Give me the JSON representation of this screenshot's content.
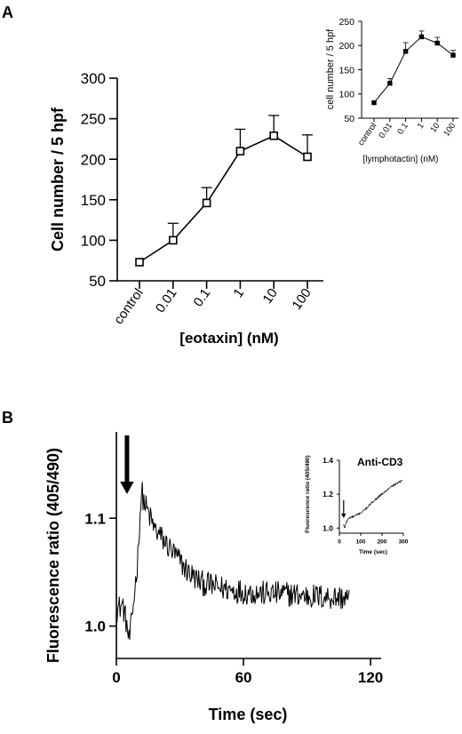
{
  "panels": {
    "a_letter": "A",
    "b_letter": "B"
  },
  "chart_data": [
    {
      "id": "eotaxin",
      "type": "line",
      "title": "",
      "xlabel": "[eotaxin] (nM)",
      "ylabel": "Cell number / 5 hpf",
      "categories": [
        "control",
        "0.01",
        "0.1",
        "1",
        "10",
        "100"
      ],
      "series": [
        {
          "values": [
            73,
            100,
            146,
            210,
            229,
            203
          ],
          "errors": [
            3,
            21,
            19,
            27,
            25,
            27
          ]
        }
      ],
      "ylim": [
        50,
        300
      ],
      "yticks": [
        "50",
        "100",
        "150",
        "200",
        "250",
        "300"
      ],
      "grid": false
    },
    {
      "id": "lymphotactin",
      "type": "line",
      "title": "",
      "xlabel": "[lymphotactin] (nM)",
      "ylabel": "cell number / 5 hpf",
      "categories": [
        "control",
        "0.01",
        "0.1",
        "1",
        "10",
        "100"
      ],
      "series": [
        {
          "values": [
            82,
            122,
            188,
            218,
            205,
            180
          ],
          "errors": [
            2,
            10,
            18,
            12,
            12,
            10
          ]
        }
      ],
      "ylim": [
        50,
        250
      ],
      "yticks": [
        "50",
        "100",
        "150",
        "200",
        "250"
      ],
      "grid": false
    },
    {
      "id": "fluorescence",
      "type": "line",
      "title": "",
      "xlabel": "Time (sec)",
      "ylabel": "Fluorescence ratio (405/490)",
      "x_range": [
        0,
        110
      ],
      "xlim": [
        0,
        125
      ],
      "xticks": [
        "0",
        "60",
        "120"
      ],
      "yticks": [
        "1.0",
        "1.1"
      ],
      "ylim": [
        0.97,
        1.18
      ],
      "anchors": [
        [
          0,
          1.015
        ],
        [
          3,
          1.02
        ],
        [
          4,
          1.01
        ],
        [
          5,
          1.0
        ],
        [
          6,
          0.985
        ],
        [
          7,
          1.0
        ],
        [
          8,
          1.02
        ],
        [
          9,
          1.04
        ],
        [
          10,
          1.06
        ],
        [
          11,
          1.1
        ],
        [
          12,
          1.125
        ],
        [
          13,
          1.115
        ],
        [
          15,
          1.105
        ],
        [
          18,
          1.09
        ],
        [
          22,
          1.08
        ],
        [
          26,
          1.07
        ],
        [
          30,
          1.06
        ],
        [
          34,
          1.05
        ],
        [
          40,
          1.04
        ],
        [
          50,
          1.035
        ],
        [
          60,
          1.032
        ],
        [
          70,
          1.03
        ],
        [
          80,
          1.03
        ],
        [
          90,
          1.028
        ],
        [
          100,
          1.027
        ],
        [
          110,
          1.026
        ]
      ],
      "noise": 0.012,
      "arrow_x": 5,
      "grid": false
    },
    {
      "id": "anti-cd3",
      "type": "line",
      "title": "Anti-CD3",
      "xlabel": "Time (sec)",
      "ylabel": "Fluorescence ratio (405/490)",
      "xticks": [
        "0",
        "100",
        "200",
        "300"
      ],
      "xlim": [
        0,
        300
      ],
      "yticks": [
        "1.0",
        "1.2",
        "1.4"
      ],
      "ylim": [
        0.97,
        1.4
      ],
      "anchors": [
        [
          18,
          1.02
        ],
        [
          25,
          1.0
        ],
        [
          30,
          1.03
        ],
        [
          45,
          1.06
        ],
        [
          70,
          1.07
        ],
        [
          100,
          1.09
        ],
        [
          130,
          1.12
        ],
        [
          160,
          1.16
        ],
        [
          190,
          1.19
        ],
        [
          220,
          1.22
        ],
        [
          250,
          1.25
        ],
        [
          280,
          1.27
        ],
        [
          295,
          1.28
        ]
      ],
      "noise": 0.006,
      "arrow_x": 20,
      "grid": false
    }
  ]
}
